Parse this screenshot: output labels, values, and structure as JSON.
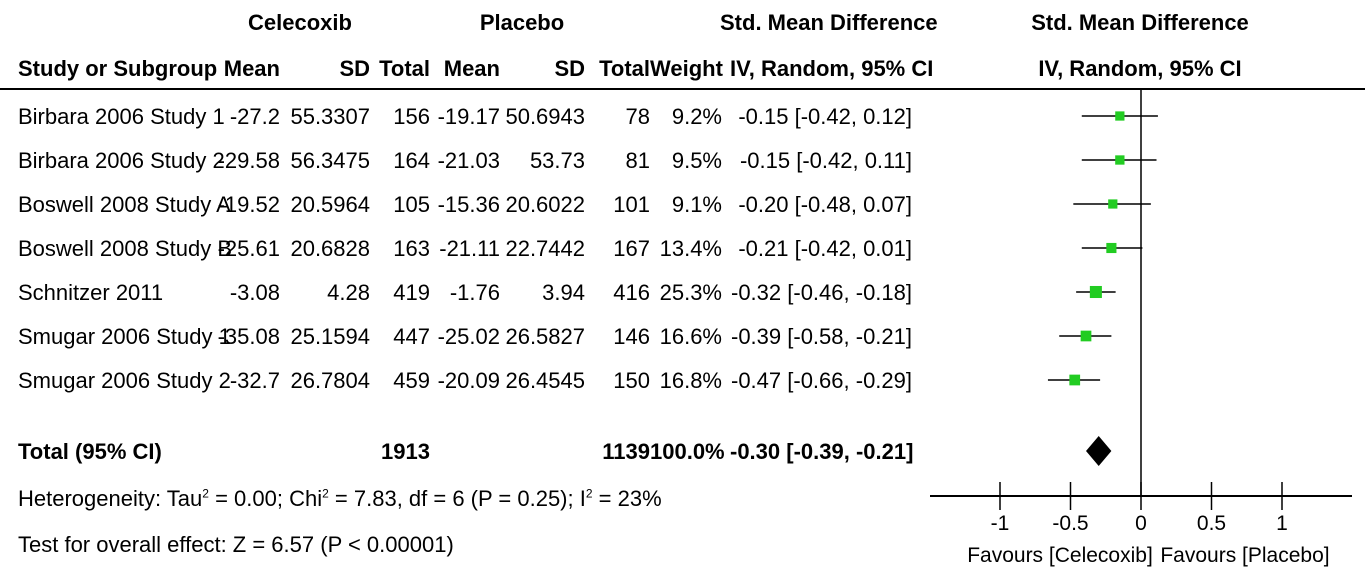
{
  "headers": {
    "group1": "Celecoxib",
    "group2": "Placebo",
    "smd_top": "Std. Mean Difference",
    "smd_bottom": "IV, Random, 95% CI",
    "plot_top": "Std. Mean Difference",
    "plot_bottom": "IV, Random, 95% CI",
    "study": "Study or Subgroup",
    "mean": "Mean",
    "sd": "SD",
    "total": "Total",
    "weight": "Weight"
  },
  "studies": [
    {
      "name": "Birbara 2006 Study 1",
      "m1": "-27.2",
      "sd1": "55.3307",
      "n1": "156",
      "m2": "-19.17",
      "sd2": "50.6943",
      "n2": "78",
      "weight": "9.2%",
      "ci": "-0.15 [-0.42, 0.12]"
    },
    {
      "name": "Birbara 2006 Study 2",
      "m1": "-29.58",
      "sd1": "56.3475",
      "n1": "164",
      "m2": "-21.03",
      "sd2": "53.73",
      "n2": "81",
      "weight": "9.5%",
      "ci": "-0.15 [-0.42, 0.11]"
    },
    {
      "name": "Boswell 2008 Study A",
      "m1": "-19.52",
      "sd1": "20.5964",
      "n1": "105",
      "m2": "-15.36",
      "sd2": "20.6022",
      "n2": "101",
      "weight": "9.1%",
      "ci": "-0.20 [-0.48, 0.07]"
    },
    {
      "name": "Boswell 2008 Study B",
      "m1": "-25.61",
      "sd1": "20.6828",
      "n1": "163",
      "m2": "-21.11",
      "sd2": "22.7442",
      "n2": "167",
      "weight": "13.4%",
      "ci": "-0.21 [-0.42, 0.01]"
    },
    {
      "name": "Schnitzer 2011",
      "m1": "-3.08",
      "sd1": "4.28",
      "n1": "419",
      "m2": "-1.76",
      "sd2": "3.94",
      "n2": "416",
      "weight": "25.3%",
      "ci": "-0.32 [-0.46, -0.18]"
    },
    {
      "name": "Smugar 2006 Study 1",
      "m1": "-35.08",
      "sd1": "25.1594",
      "n1": "447",
      "m2": "-25.02",
      "sd2": "26.5827",
      "n2": "146",
      "weight": "16.6%",
      "ci": "-0.39 [-0.58, -0.21]"
    },
    {
      "name": "Smugar 2006 Study 2",
      "m1": "-32.7",
      "sd1": "26.7804",
      "n1": "459",
      "m2": "-20.09",
      "sd2": "26.4545",
      "n2": "150",
      "weight": "16.8%",
      "ci": "-0.47 [-0.66, -0.29]"
    }
  ],
  "total": {
    "label": "Total (95% CI)",
    "n1": "1913",
    "n2": "1139",
    "weight": "100.0%",
    "ci": "-0.30 [-0.39, -0.21]"
  },
  "heterogeneity": {
    "a": "Heterogeneity: Tau",
    "b": " = 0.00; Chi",
    "c": " = 7.83, df = 6 (P = 0.25); I",
    "d": " = 23%",
    "sup": "2"
  },
  "overall_effect": "Test for overall effect: Z = 6.57 (P < 0.00001)",
  "favours_left": "Favours [Celecoxib]",
  "favours_right": "Favours [Placebo]",
  "colors": {
    "marker": "#22cc22",
    "line": "#000000"
  },
  "chart_data": {
    "type": "forest",
    "xlim": [
      -1,
      1
    ],
    "xticks": [
      -1,
      -0.5,
      0,
      0.5,
      1
    ],
    "tick_labels": [
      "-1",
      "-0.5",
      "0",
      "0.5",
      "1"
    ],
    "xlabel_left": "Favours [Celecoxib]",
    "xlabel_right": "Favours [Placebo]",
    "studies": [
      {
        "label": "Birbara 2006 Study 1",
        "estimate": -0.15,
        "lower": -0.42,
        "upper": 0.12,
        "weight": 9.2
      },
      {
        "label": "Birbara 2006 Study 2",
        "estimate": -0.15,
        "lower": -0.42,
        "upper": 0.11,
        "weight": 9.5
      },
      {
        "label": "Boswell 2008 Study A",
        "estimate": -0.2,
        "lower": -0.48,
        "upper": 0.07,
        "weight": 9.1
      },
      {
        "label": "Boswell 2008 Study B",
        "estimate": -0.21,
        "lower": -0.42,
        "upper": 0.01,
        "weight": 13.4
      },
      {
        "label": "Schnitzer 2011",
        "estimate": -0.32,
        "lower": -0.46,
        "upper": -0.18,
        "weight": 25.3
      },
      {
        "label": "Smugar 2006 Study 1",
        "estimate": -0.39,
        "lower": -0.58,
        "upper": -0.21,
        "weight": 16.6
      },
      {
        "label": "Smugar 2006 Study 2",
        "estimate": -0.47,
        "lower": -0.66,
        "upper": -0.29,
        "weight": 16.8
      }
    ],
    "pooled": {
      "label": "Total (95% CI)",
      "estimate": -0.3,
      "lower": -0.39,
      "upper": -0.21
    }
  }
}
